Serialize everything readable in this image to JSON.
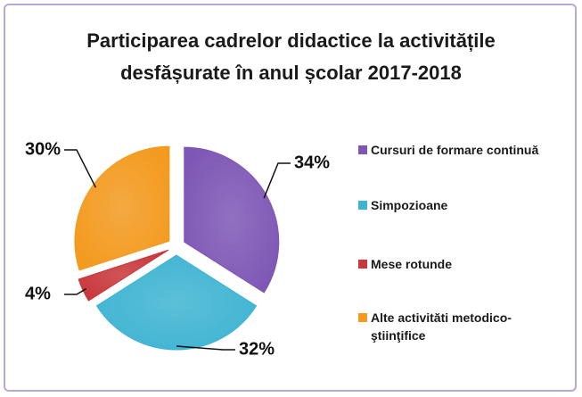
{
  "chart_data": {
    "type": "pie",
    "title": "Participarea cadrelor didactice la activitățile desfășurate în anul școlar 2017-2018",
    "categories": [
      "Cursuri de formare continuă",
      "Simpozioane",
      "Mese rotunde",
      "Alte activităti metodico-ştiinţifice"
    ],
    "values": [
      34,
      32,
      4,
      30
    ],
    "value_labels": [
      "34%",
      "32%",
      "4%",
      "30%"
    ],
    "colors": [
      "#7e57b5",
      "#3fb4d2",
      "#c8373a",
      "#f39a1f"
    ]
  }
}
